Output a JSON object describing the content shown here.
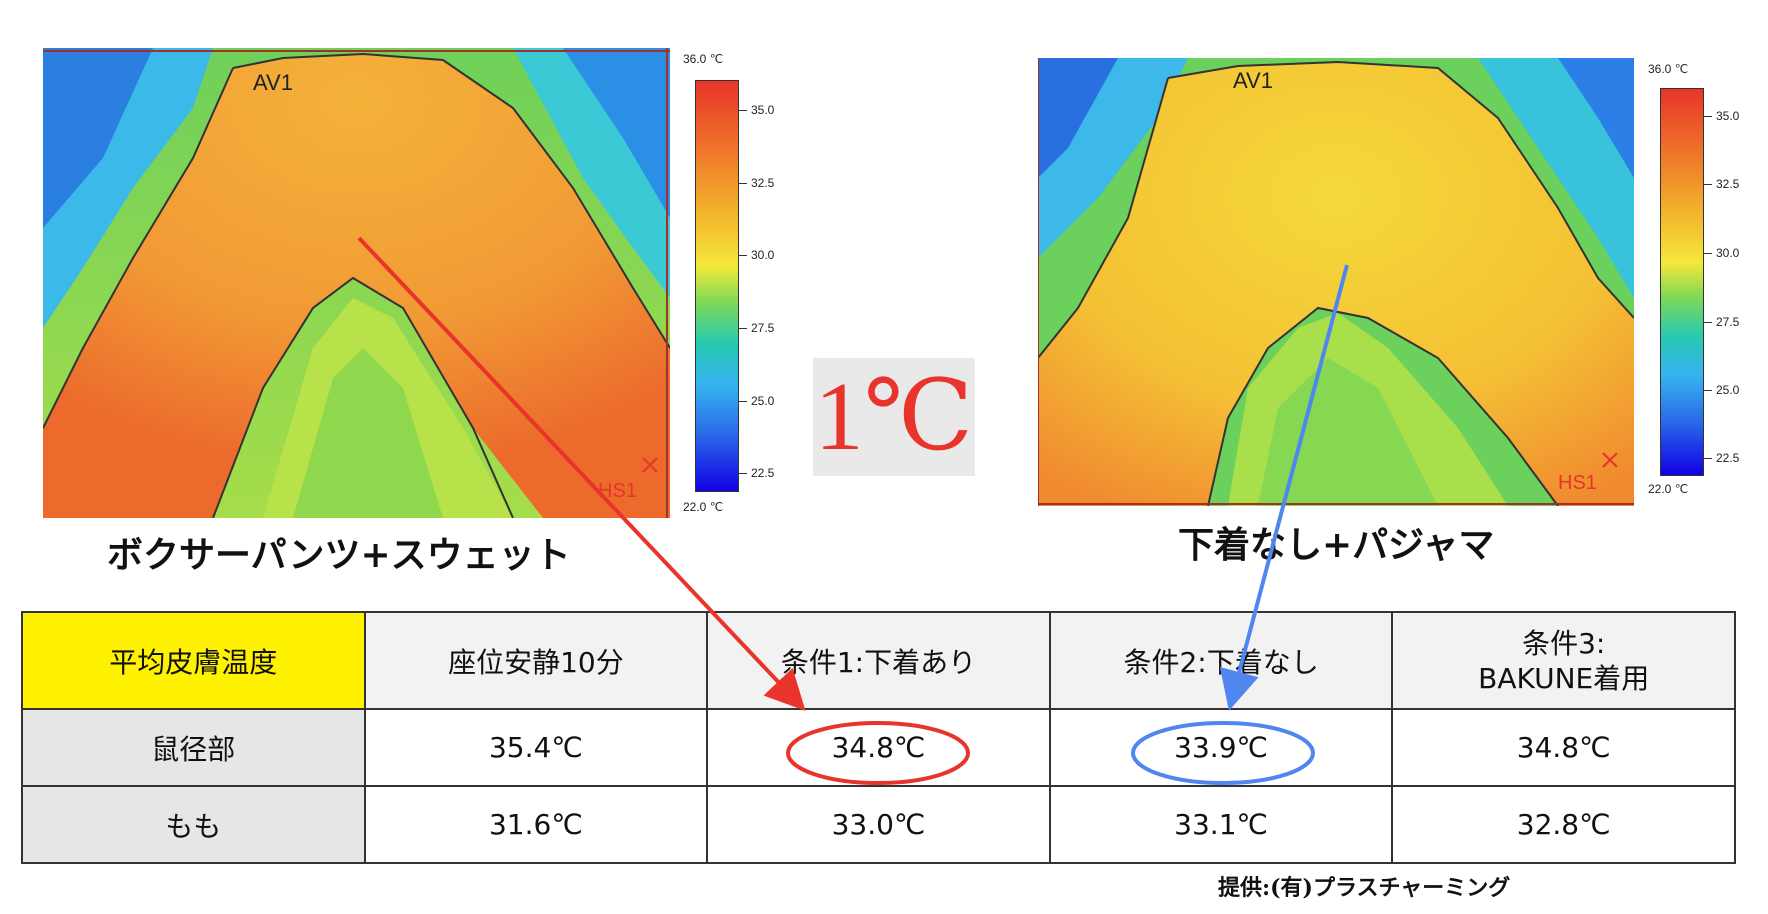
{
  "left_image": {
    "label": "ボクサーパンツ+スウェット",
    "av": "AV1",
    "hs": "HS1"
  },
  "right_image": {
    "label": "下着なし+パジャマ",
    "av": "AV1",
    "hs": "HS1"
  },
  "scale": {
    "top": "36.0 ℃",
    "bottom": "22.0 ℃",
    "ticks": [
      "35.0",
      "32.5",
      "30.0",
      "27.5",
      "25.0",
      "22.5"
    ]
  },
  "difference": "1℃",
  "table": {
    "headers": [
      "平均皮膚温度",
      "座位安静10分",
      "条件1:下着あり",
      "条件2:下着なし",
      "条件3:\nBAKUNE着用"
    ],
    "rows": [
      {
        "label": "鼠径部",
        "values": [
          "35.4℃",
          "34.8℃",
          "33.9℃",
          "34.8℃"
        ]
      },
      {
        "label": "もも",
        "values": [
          "31.6℃",
          "33.0℃",
          "33.1℃",
          "32.8℃"
        ]
      }
    ]
  },
  "credit": "提供:(有)プラスチャーミング",
  "colors": {
    "red": "#e8342a",
    "blue": "#4f86f0",
    "header_yellow": "#fff200"
  }
}
